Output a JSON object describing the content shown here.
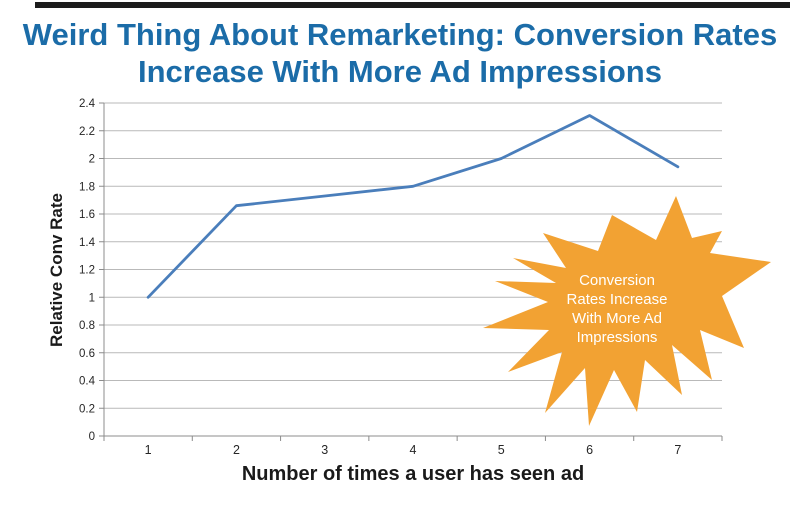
{
  "page": {
    "title": "Weird Thing About Remarketing: Conversion Rates\nIncrease With More Ad Impressions",
    "title_color": "#1B6CA8",
    "top_bar_color": "#1c1c1c"
  },
  "chart_data": {
    "type": "line",
    "x": [
      1,
      2,
      3,
      4,
      5,
      6,
      7
    ],
    "values": [
      1.0,
      1.66,
      1.73,
      1.8,
      2.0,
      2.31,
      1.94
    ],
    "series_name": "Relative Conv Rate",
    "xlabel": "Number of times a user has seen ad",
    "ylabel": "Relative Conv Rate",
    "ylim": [
      0,
      2.4
    ],
    "ytick_step": 0.2,
    "ytick_labels": [
      "0",
      "0.2",
      "0.4",
      "0.6",
      "0.8",
      "1",
      "1.2",
      "1.4",
      "1.6",
      "1.8",
      "2",
      "2.2",
      "2.4"
    ],
    "xtick_labels": [
      "1",
      "2",
      "3",
      "4",
      "5",
      "6",
      "7"
    ],
    "grid": true,
    "legend": "none",
    "line_color": "#4A7EBB",
    "gridline_color": "#B9B9B9",
    "axis_color": "#8C8C8C"
  },
  "annotation": {
    "text": "Conversion\nRates Increase\nWith More Ad\nImpressions",
    "shape": "starburst",
    "fill_color": "#F2A233",
    "text_color": "#FFFFFF"
  }
}
